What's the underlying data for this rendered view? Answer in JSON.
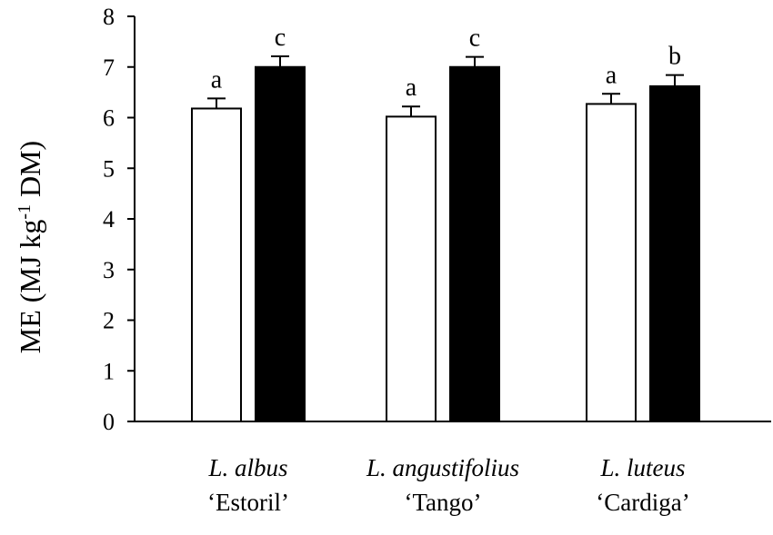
{
  "chart_data": {
    "type": "bar",
    "ylabel": {
      "prefix": "ME (MJ kg",
      "superscript": "-1",
      "suffix": " DM)"
    },
    "ylim": [
      0,
      8
    ],
    "yticks": [
      "0",
      "1",
      "2",
      "3",
      "4",
      "5",
      "6",
      "7",
      "8"
    ],
    "grid": false,
    "legend": "none",
    "categories": [
      {
        "species": "L. albus",
        "cultivar": "‘Estoril’"
      },
      {
        "species": "L. angustifolius",
        "cultivar": "‘Tango’"
      },
      {
        "species": "L. luteus",
        "cultivar": "‘Cardiga’"
      }
    ],
    "series": [
      {
        "fill": "#ffffff",
        "values": [
          6.18,
          6.02,
          6.27
        ],
        "errors": [
          0.2,
          0.2,
          0.2
        ],
        "significance": [
          "a",
          "a",
          "a"
        ]
      },
      {
        "fill": "#000000",
        "values": [
          7.0,
          7.0,
          6.62
        ],
        "errors": [
          0.21,
          0.2,
          0.22
        ],
        "significance": [
          "c",
          "c",
          "b"
        ]
      }
    ]
  }
}
